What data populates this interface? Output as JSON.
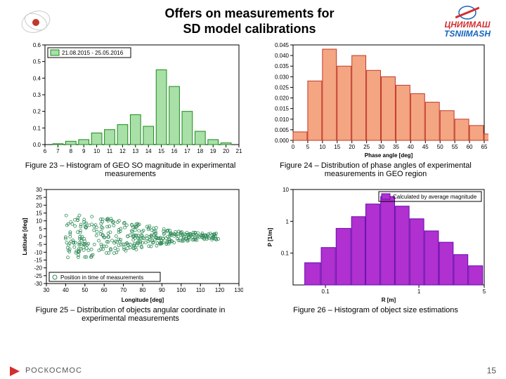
{
  "header": {
    "title_l1": "Offers on measurements for",
    "title_l2": "SD model calibrations",
    "ru": "ЦНИИМАШ",
    "en": "TSNIIMASH"
  },
  "page_number": "15",
  "footer_brand": "РОСКОСМОС",
  "captions": {
    "c23": "Figure 23 – Histogram of GEO SO magnitude in experimental measurements",
    "c24": "Figure 24  – Distribution of phase angles of experimental measurements in GEO region",
    "c25": "Figure 25  – Distribution of objects angular coordinate in experimental measurements",
    "c26": "Figure 26 – Histogram of object size estimations"
  },
  "chart23": {
    "type": "histogram",
    "legend_text": "21.08.2015 - 25.05.2016",
    "bar_fill": "#a8e0a8",
    "bar_stroke": "#1b8a1b",
    "xlim": [
      6,
      21
    ],
    "xtick_step": 1,
    "ylim": [
      0,
      0.6
    ],
    "ytick_step": 0.1,
    "bins": [
      6,
      7,
      8,
      9,
      10,
      11,
      12,
      13,
      14,
      15,
      16,
      17,
      18,
      19,
      20,
      21
    ],
    "values": [
      0,
      0.005,
      0.02,
      0.03,
      0.07,
      0.09,
      0.12,
      0.18,
      0.11,
      0.45,
      0.35,
      0.2,
      0.08,
      0.03,
      0.01,
      0
    ]
  },
  "chart24": {
    "type": "histogram",
    "bar_fill": "#f4a582",
    "bar_stroke": "#c0392b",
    "xlabel": "Phase angle [deg]",
    "xlim": [
      0,
      65
    ],
    "xtick_step": 5,
    "ylim": [
      0,
      0.045
    ],
    "ytick_step": 0.005,
    "bins": [
      0,
      5,
      10,
      15,
      20,
      25,
      30,
      35,
      40,
      45,
      50,
      55,
      60,
      65
    ],
    "values": [
      0.004,
      0.028,
      0.043,
      0.035,
      0.04,
      0.033,
      0.03,
      0.026,
      0.022,
      0.018,
      0.014,
      0.01,
      0.007,
      0.003
    ]
  },
  "chart25": {
    "type": "scatter",
    "marker_color": "#2e8b57",
    "marker_size": 2,
    "xlabel": "Longitude [deg]",
    "ylabel": "Latitude [deg]",
    "legend_text": "Position in time of measurements",
    "xlim": [
      30,
      130
    ],
    "xtick_step": 10,
    "ylim": [
      -30,
      30
    ],
    "ytick_step": 5,
    "n_points": 380,
    "seed": 7
  },
  "chart26": {
    "type": "histogram",
    "legend_text": "Calculated by average magnitude",
    "bar_fill": "#b030d0",
    "bar_stroke": "#6a0dad",
    "xlabel": "R [m]",
    "ylabel": "P [1/m]",
    "xlim": [
      0.045,
      5
    ],
    "xticks": [
      0.1,
      1,
      5
    ],
    "xscale": "log",
    "ylim": [
      0.01,
      10
    ],
    "yticks": [
      0.1,
      1,
      10
    ],
    "yscale": "log",
    "bins_log": [
      0.06,
      0.09,
      0.13,
      0.19,
      0.27,
      0.39,
      0.56,
      0.8,
      1.15,
      1.65,
      2.37,
      3.4,
      4.9
    ],
    "values": [
      0.05,
      0.15,
      0.6,
      1.4,
      3.5,
      6.0,
      3.0,
      1.2,
      0.5,
      0.22,
      0.09,
      0.04,
      0
    ]
  }
}
